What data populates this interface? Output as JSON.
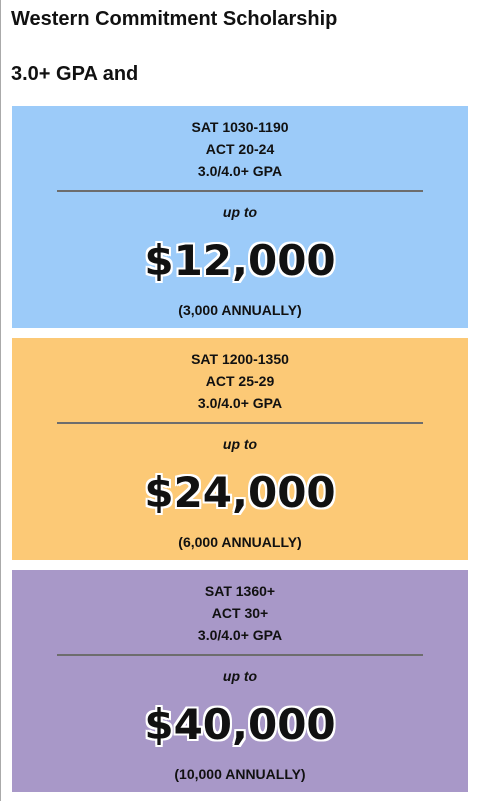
{
  "header": {
    "title": "Western Commitment Scholarship",
    "subtitle": "3.0+ GPA and"
  },
  "cards": [
    {
      "requirements": [
        "SAT 1030-1190",
        "ACT 20-24",
        "3.0/4.0+ GPA"
      ],
      "prefix": "up to",
      "amount": "$12,000",
      "note": "(3,000 ANNUALLY)",
      "color": "#9ccbf9"
    },
    {
      "requirements": [
        "SAT 1200-1350",
        "ACT 25-29",
        "3.0/4.0+ GPA"
      ],
      "prefix": "up to",
      "amount": "$24,000",
      "note": "(6,000 ANNUALLY)",
      "color": "#fcc976"
    },
    {
      "requirements": [
        "SAT 1360+",
        "ACT 30+",
        "3.0/4.0+ GPA"
      ],
      "prefix": "up to",
      "amount": "$40,000",
      "note": "(10,000 ANNUALLY)",
      "color": "#a898c8"
    }
  ]
}
